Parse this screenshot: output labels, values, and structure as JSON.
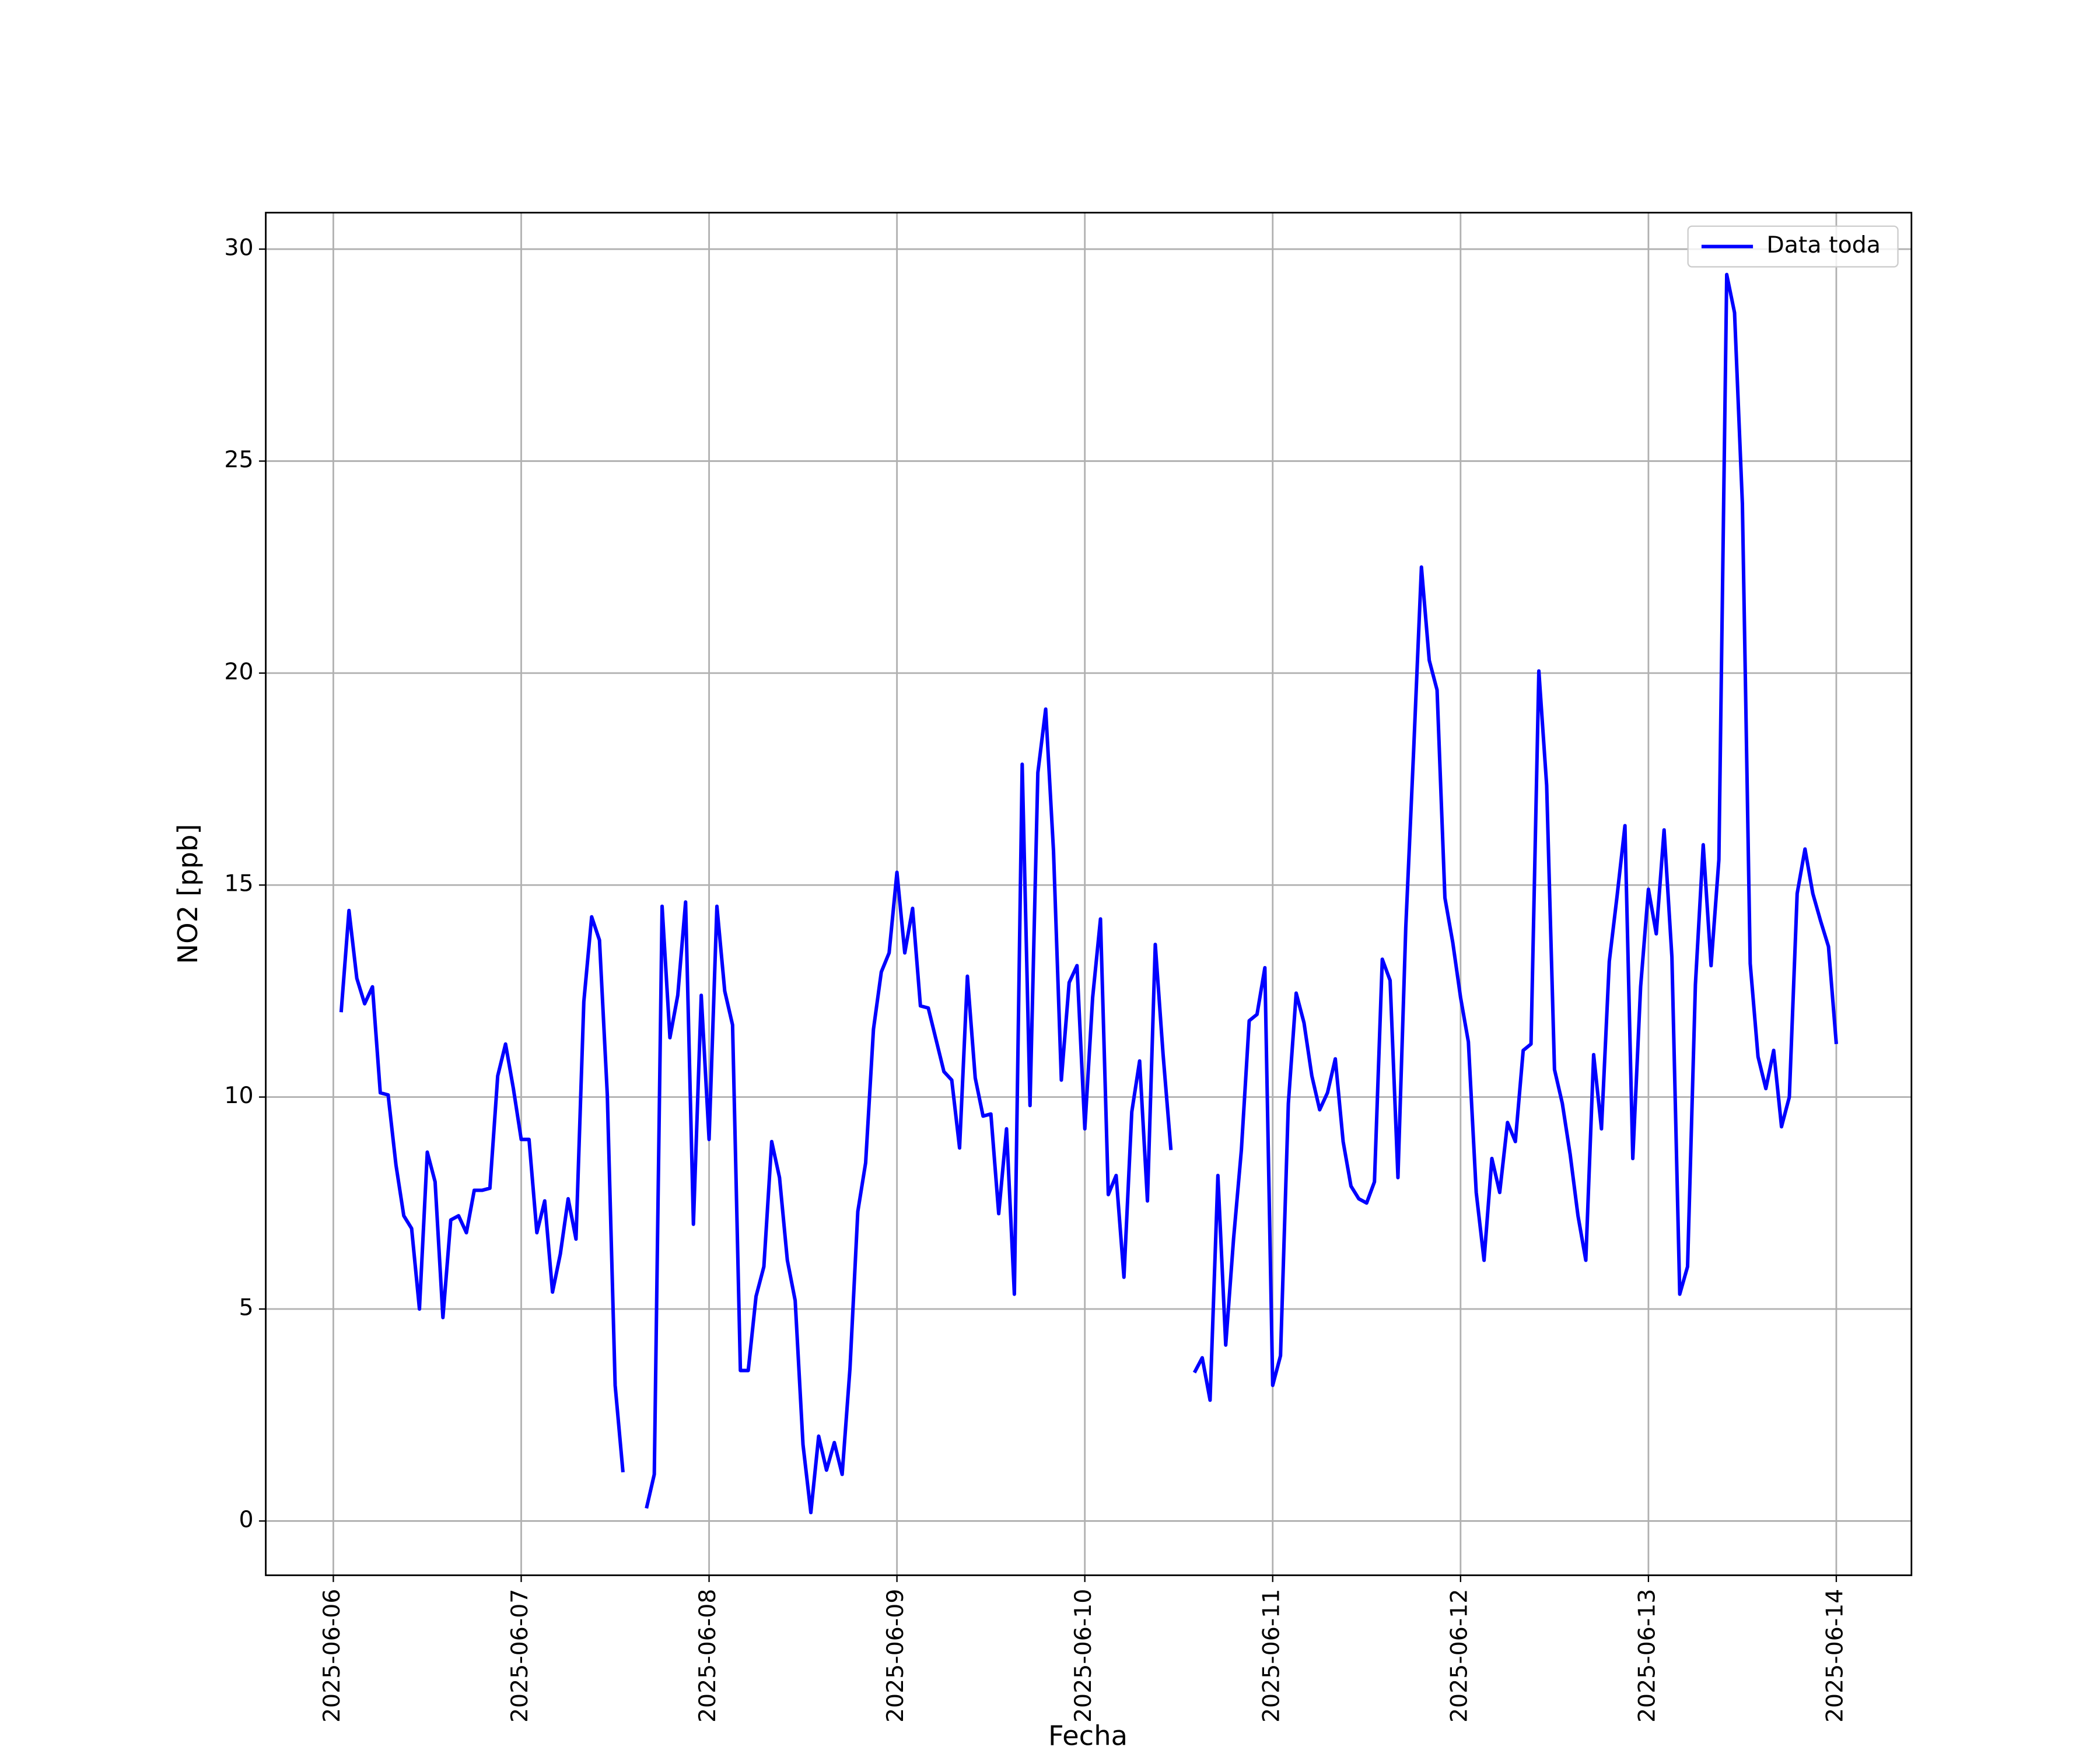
{
  "chart_data": {
    "type": "line",
    "x_label": "Fecha",
    "y_label": "NO2 [ppb]",
    "xlim": [
      "2025-06-05 15:22",
      "2025-06-14 09:36"
    ],
    "xticks": [
      "2025-06-06",
      "2025-06-07",
      "2025-06-08",
      "2025-06-09",
      "2025-06-10",
      "2025-06-11",
      "2025-06-12",
      "2025-06-13",
      "2025-06-14"
    ],
    "ylim": [
      -1.28,
      30.86
    ],
    "yticks": [
      0,
      5,
      10,
      15,
      20,
      25,
      30
    ],
    "grid": true,
    "legend": "upper right",
    "x": [
      "2025-06-06 01:00",
      "2025-06-06 02:00",
      "2025-06-06 03:00",
      "2025-06-06 04:00",
      "2025-06-06 05:00",
      "2025-06-06 06:00",
      "2025-06-06 07:00",
      "2025-06-06 08:00",
      "2025-06-06 09:00",
      "2025-06-06 10:00",
      "2025-06-06 11:00",
      "2025-06-06 12:00",
      "2025-06-06 13:00",
      "2025-06-06 14:00",
      "2025-06-06 15:00",
      "2025-06-06 16:00",
      "2025-06-06 17:00",
      "2025-06-06 18:00",
      "2025-06-06 19:00",
      "2025-06-06 20:00",
      "2025-06-06 21:00",
      "2025-06-06 22:00",
      "2025-06-06 23:00",
      "2025-06-07 00:00",
      "2025-06-07 01:00",
      "2025-06-07 02:00",
      "2025-06-07 03:00",
      "2025-06-07 04:00",
      "2025-06-07 05:00",
      "2025-06-07 06:00",
      "2025-06-07 07:00",
      "2025-06-07 08:00",
      "2025-06-07 09:00",
      "2025-06-07 10:00",
      "2025-06-07 11:00",
      "2025-06-07 12:00",
      "2025-06-07 13:00",
      "2025-06-07 14:00",
      "2025-06-07 15:00",
      "2025-06-07 16:00",
      "2025-06-07 17:00",
      "2025-06-07 18:00",
      "2025-06-07 19:00",
      "2025-06-07 20:00",
      "2025-06-07 21:00",
      "2025-06-07 22:00",
      "2025-06-07 23:00",
      "2025-06-08 00:00",
      "2025-06-08 01:00",
      "2025-06-08 02:00",
      "2025-06-08 03:00",
      "2025-06-08 04:00",
      "2025-06-08 05:00",
      "2025-06-08 06:00",
      "2025-06-08 07:00",
      "2025-06-08 08:00",
      "2025-06-08 09:00",
      "2025-06-08 10:00",
      "2025-06-08 11:00",
      "2025-06-08 12:00",
      "2025-06-08 13:00",
      "2025-06-08 14:00",
      "2025-06-08 15:00",
      "2025-06-08 16:00",
      "2025-06-08 17:00",
      "2025-06-08 18:00",
      "2025-06-08 19:00",
      "2025-06-08 20:00",
      "2025-06-08 21:00",
      "2025-06-08 22:00",
      "2025-06-08 23:00",
      "2025-06-09 00:00",
      "2025-06-09 01:00",
      "2025-06-09 02:00",
      "2025-06-09 03:00",
      "2025-06-09 04:00",
      "2025-06-09 05:00",
      "2025-06-09 06:00",
      "2025-06-09 07:00",
      "2025-06-09 08:00",
      "2025-06-09 09:00",
      "2025-06-09 10:00",
      "2025-06-09 11:00",
      "2025-06-09 12:00",
      "2025-06-09 13:00",
      "2025-06-09 14:00",
      "2025-06-09 15:00",
      "2025-06-09 16:00",
      "2025-06-09 17:00",
      "2025-06-09 18:00",
      "2025-06-09 19:00",
      "2025-06-09 20:00",
      "2025-06-09 21:00",
      "2025-06-09 22:00",
      "2025-06-09 23:00",
      "2025-06-10 00:00",
      "2025-06-10 01:00",
      "2025-06-10 02:00",
      "2025-06-10 03:00",
      "2025-06-10 04:00",
      "2025-06-10 05:00",
      "2025-06-10 06:00",
      "2025-06-10 07:00",
      "2025-06-10 08:00",
      "2025-06-10 09:00",
      "2025-06-10 10:00",
      "2025-06-10 11:00",
      "2025-06-10 12:00",
      "2025-06-10 13:00",
      "2025-06-10 14:00",
      "2025-06-10 15:00",
      "2025-06-10 16:00",
      "2025-06-10 17:00",
      "2025-06-10 18:00",
      "2025-06-10 19:00",
      "2025-06-10 20:00",
      "2025-06-10 21:00",
      "2025-06-10 22:00",
      "2025-06-10 23:00",
      "2025-06-11 00:00",
      "2025-06-11 01:00",
      "2025-06-11 02:00",
      "2025-06-11 03:00",
      "2025-06-11 04:00",
      "2025-06-11 05:00",
      "2025-06-11 06:00",
      "2025-06-11 07:00",
      "2025-06-11 08:00",
      "2025-06-11 09:00",
      "2025-06-11 10:00",
      "2025-06-11 11:00",
      "2025-06-11 12:00",
      "2025-06-11 13:00",
      "2025-06-11 14:00",
      "2025-06-11 15:00",
      "2025-06-11 16:00",
      "2025-06-11 17:00",
      "2025-06-11 18:00",
      "2025-06-11 19:00",
      "2025-06-11 20:00",
      "2025-06-11 21:00",
      "2025-06-11 22:00",
      "2025-06-11 23:00",
      "2025-06-12 00:00",
      "2025-06-12 01:00",
      "2025-06-12 02:00",
      "2025-06-12 03:00",
      "2025-06-12 04:00",
      "2025-06-12 05:00",
      "2025-06-12 06:00",
      "2025-06-12 07:00",
      "2025-06-12 08:00",
      "2025-06-12 09:00",
      "2025-06-12 10:00",
      "2025-06-12 11:00",
      "2025-06-12 12:00",
      "2025-06-12 13:00",
      "2025-06-12 14:00",
      "2025-06-12 15:00",
      "2025-06-12 16:00",
      "2025-06-12 17:00",
      "2025-06-12 18:00",
      "2025-06-12 19:00",
      "2025-06-12 20:00",
      "2025-06-12 21:00",
      "2025-06-12 22:00",
      "2025-06-12 23:00",
      "2025-06-13 00:00",
      "2025-06-13 01:00",
      "2025-06-13 02:00",
      "2025-06-13 03:00",
      "2025-06-13 04:00",
      "2025-06-13 05:00",
      "2025-06-13 06:00",
      "2025-06-13 07:00",
      "2025-06-13 08:00",
      "2025-06-13 09:00",
      "2025-06-13 10:00",
      "2025-06-13 11:00",
      "2025-06-13 12:00",
      "2025-06-13 13:00",
      "2025-06-13 14:00",
      "2025-06-13 15:00",
      "2025-06-13 16:00",
      "2025-06-13 17:00",
      "2025-06-13 18:00",
      "2025-06-13 19:00",
      "2025-06-13 20:00",
      "2025-06-13 21:00",
      "2025-06-13 22:00",
      "2025-06-13 23:00",
      "2025-06-14 00:00"
    ],
    "series": [
      {
        "name": "Data toda",
        "color": "#0000ff",
        "values": [
          12.0,
          14.4,
          12.8,
          12.2,
          12.6,
          10.1,
          10.05,
          8.4,
          7.2,
          6.9,
          5.0,
          8.7,
          8.0,
          4.8,
          7.1,
          7.2,
          6.8,
          7.8,
          7.8,
          7.85,
          10.5,
          11.25,
          10.2,
          9.0,
          9.0,
          6.8,
          7.55,
          5.4,
          6.3,
          7.6,
          6.65,
          12.25,
          14.25,
          13.7,
          10.05,
          3.2,
          1.15,
          null,
          null,
          0.3,
          1.1,
          14.5,
          11.4,
          12.4,
          14.6,
          7.0,
          12.4,
          9.0,
          14.5,
          12.5,
          11.7,
          3.55,
          3.55,
          5.3,
          6.0,
          8.95,
          8.1,
          6.15,
          5.2,
          1.8,
          0.2,
          2.0,
          1.2,
          1.85,
          1.1,
          3.6,
          7.3,
          8.45,
          11.6,
          12.95,
          13.4,
          15.3,
          13.4,
          14.45,
          12.15,
          12.1,
          11.35,
          10.6,
          10.4,
          8.8,
          12.85,
          10.45,
          9.55,
          9.6,
          7.25,
          9.25,
          5.35,
          17.85,
          9.8,
          17.65,
          19.15,
          15.8,
          10.4,
          12.7,
          13.1,
          9.25,
          12.35,
          14.2,
          7.7,
          8.15,
          5.75,
          9.65,
          10.85,
          7.55,
          13.6,
          11.0,
          8.75,
          null,
          null,
          3.5,
          3.85,
          2.85,
          8.15,
          4.15,
          6.65,
          8.75,
          11.8,
          11.95,
          13.05,
          3.2,
          3.9,
          9.85,
          12.45,
          11.75,
          10.5,
          9.7,
          10.1,
          10.9,
          8.95,
          7.9,
          7.6,
          7.5,
          8.0,
          13.25,
          12.75,
          8.1,
          14.0,
          18.15,
          22.5,
          20.3,
          19.6,
          14.7,
          13.65,
          12.35,
          11.3,
          7.75,
          6.15,
          8.55,
          7.75,
          9.4,
          8.95,
          11.1,
          11.25,
          20.05,
          17.35,
          10.65,
          9.85,
          8.65,
          7.2,
          6.15,
          11.0,
          9.25,
          13.2,
          14.75,
          16.4,
          8.55,
          12.6,
          14.9,
          13.85,
          16.3,
          13.3,
          5.35,
          6.0,
          12.65,
          15.95,
          13.1,
          15.6,
          29.4,
          28.5,
          24.0,
          13.15,
          10.95,
          10.2,
          11.1,
          9.3,
          10.0,
          14.8,
          15.85,
          14.8,
          14.15,
          13.55,
          11.25
        ]
      }
    ]
  }
}
